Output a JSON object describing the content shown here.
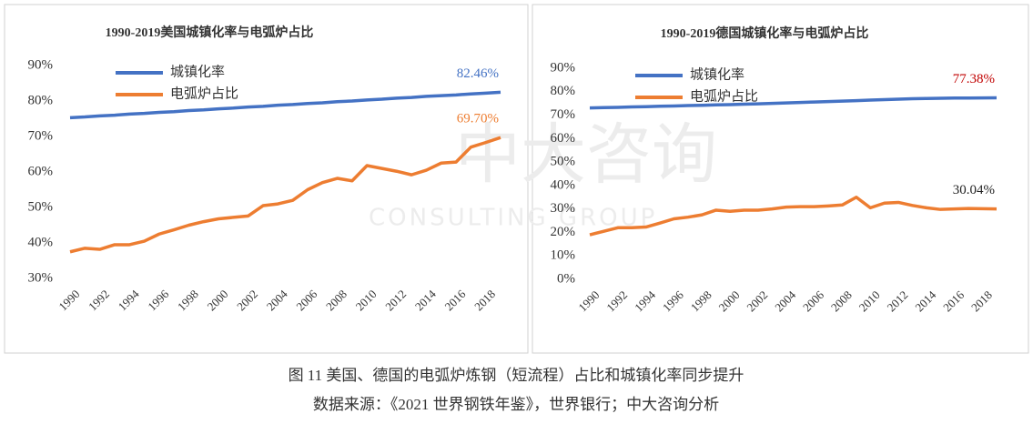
{
  "chart_data": [
    {
      "type": "line",
      "title": "1990-2019美国城镇化率与电弧炉占比",
      "x": [
        1990,
        1991,
        1992,
        1993,
        1994,
        1995,
        1996,
        1997,
        1998,
        1999,
        2000,
        2001,
        2002,
        2003,
        2004,
        2005,
        2006,
        2007,
        2008,
        2009,
        2010,
        2011,
        2012,
        2013,
        2014,
        2015,
        2016,
        2017,
        2018,
        2019
      ],
      "xlim": [
        1990,
        2019
      ],
      "xticks": [
        1990,
        1992,
        1994,
        1996,
        1998,
        2000,
        2002,
        2004,
        2006,
        2008,
        2010,
        2012,
        2014,
        2016,
        2018
      ],
      "ylim": [
        30,
        90
      ],
      "yticks": [
        {
          "value": 30,
          "label": "30%"
        },
        {
          "value": 40,
          "label": "40%"
        },
        {
          "value": 50,
          "label": "50%"
        },
        {
          "value": 60,
          "label": "60%"
        },
        {
          "value": 70,
          "label": "70%"
        },
        {
          "value": 80,
          "label": "80%"
        },
        {
          "value": 90,
          "label": "90%"
        }
      ],
      "legend": "upper left",
      "series": [
        {
          "name": "城镇化率",
          "color": "#4472c4",
          "label_color": "#4472c4",
          "values": [
            75.3,
            75.5,
            75.8,
            76.0,
            76.3,
            76.5,
            76.8,
            77.0,
            77.3,
            77.5,
            77.8,
            78.0,
            78.3,
            78.5,
            78.8,
            79.0,
            79.3,
            79.5,
            79.8,
            80.0,
            80.3,
            80.5,
            80.8,
            81.0,
            81.3,
            81.5,
            81.7,
            82.0,
            82.2,
            82.46
          ],
          "value_labels": [
            null,
            null,
            null,
            null,
            null,
            null,
            null,
            null,
            null,
            null,
            null,
            null,
            null,
            null,
            null,
            null,
            null,
            null,
            null,
            null,
            null,
            null,
            null,
            null,
            null,
            null,
            null,
            null,
            null,
            "82.46%"
          ]
        },
        {
          "name": "电弧炉占比",
          "color": "#ed7d31",
          "label_color": "#ed7d31",
          "values": [
            37.5,
            38.5,
            38.2,
            39.5,
            39.5,
            40.5,
            42.5,
            43.7,
            45,
            46,
            46.8,
            47.2,
            47.6,
            50.5,
            51,
            52,
            55,
            57,
            58.2,
            57.5,
            61.8,
            61,
            60.2,
            59.2,
            60.5,
            62.5,
            62.8,
            67,
            68.3,
            69.7
          ],
          "value_labels": [
            null,
            null,
            null,
            null,
            null,
            null,
            null,
            null,
            null,
            null,
            null,
            null,
            null,
            null,
            null,
            null,
            null,
            null,
            null,
            null,
            null,
            null,
            null,
            null,
            null,
            null,
            null,
            null,
            null,
            "69.70%"
          ]
        }
      ]
    },
    {
      "type": "line",
      "title": "1990-2019德国城镇化率与电弧炉占比",
      "x": [
        1990,
        1991,
        1992,
        1993,
        1994,
        1995,
        1996,
        1997,
        1998,
        1999,
        2000,
        2001,
        2002,
        2003,
        2004,
        2005,
        2006,
        2007,
        2008,
        2009,
        2010,
        2011,
        2012,
        2013,
        2014,
        2015,
        2016,
        2017,
        2018,
        2019
      ],
      "xlim": [
        1990,
        2019
      ],
      "xticks": [
        1990,
        1992,
        1994,
        1996,
        1998,
        2000,
        2002,
        2004,
        2006,
        2008,
        2010,
        2012,
        2014,
        2016,
        2018
      ],
      "ylim": [
        0,
        90
      ],
      "yticks": [
        {
          "value": 0,
          "label": "0%"
        },
        {
          "value": 10,
          "label": "10%"
        },
        {
          "value": 20,
          "label": "20%"
        },
        {
          "value": 30,
          "label": "30%"
        },
        {
          "value": 40,
          "label": "40%"
        },
        {
          "value": 50,
          "label": "50%"
        },
        {
          "value": 60,
          "label": "60%"
        },
        {
          "value": 70,
          "label": "70%"
        },
        {
          "value": 80,
          "label": "80%"
        },
        {
          "value": 90,
          "label": "90%"
        }
      ],
      "legend": "upper left",
      "series": [
        {
          "name": "城镇化率",
          "color": "#4472c4",
          "label_color": "#c00000",
          "values": [
            73.1,
            73.2,
            73.3,
            73.5,
            73.6,
            73.8,
            73.9,
            74.1,
            74.2,
            74.4,
            74.5,
            74.7,
            74.8,
            75.0,
            75.2,
            75.4,
            75.6,
            75.8,
            76.0,
            76.2,
            76.4,
            76.6,
            76.8,
            77.0,
            77.1,
            77.2,
            77.3,
            77.3,
            77.35,
            77.38
          ],
          "value_labels": [
            null,
            null,
            null,
            null,
            null,
            null,
            null,
            null,
            null,
            null,
            null,
            null,
            null,
            null,
            null,
            null,
            null,
            null,
            null,
            null,
            null,
            null,
            null,
            null,
            null,
            null,
            null,
            null,
            null,
            "77.38%"
          ]
        },
        {
          "name": "电弧炉占比",
          "color": "#ed7d31",
          "label_color": "#222222",
          "values": [
            19,
            20.5,
            22,
            22,
            22.3,
            24,
            25.8,
            26.5,
            27.5,
            29.5,
            29,
            29.5,
            29.5,
            30,
            30.8,
            31,
            31,
            31.3,
            31.7,
            35,
            30.5,
            32.5,
            32.8,
            31.5,
            30.5,
            29.8,
            30,
            30.2,
            30.1,
            30.04
          ],
          "value_labels": [
            null,
            null,
            null,
            null,
            null,
            null,
            null,
            null,
            null,
            null,
            null,
            null,
            null,
            null,
            null,
            null,
            null,
            null,
            null,
            null,
            null,
            null,
            null,
            null,
            null,
            null,
            null,
            null,
            null,
            "30.04%"
          ]
        }
      ]
    }
  ],
  "watermark": {
    "text": "中大咨询",
    "subtext": "CONSULTING GROUP"
  },
  "caption": {
    "figure": "图 11 美国、德国的电弧炉炼钢（短流程）占比和城镇化率同步提升",
    "source": "数据来源：《2021 世界钢铁年鉴》，世界银行；中大咨询分析"
  }
}
